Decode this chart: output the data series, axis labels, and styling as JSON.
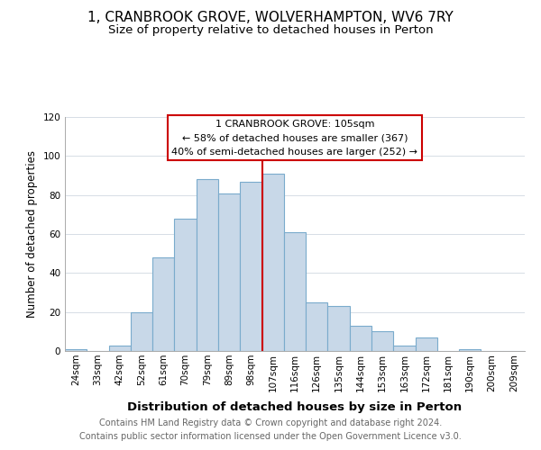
{
  "title": "1, CRANBROOK GROVE, WOLVERHAMPTON, WV6 7RY",
  "subtitle": "Size of property relative to detached houses in Perton",
  "xlabel": "Distribution of detached houses by size in Perton",
  "ylabel": "Number of detached properties",
  "bar_labels": [
    "24sqm",
    "33sqm",
    "42sqm",
    "52sqm",
    "61sqm",
    "70sqm",
    "79sqm",
    "89sqm",
    "98sqm",
    "107sqm",
    "116sqm",
    "126sqm",
    "135sqm",
    "144sqm",
    "153sqm",
    "163sqm",
    "172sqm",
    "181sqm",
    "190sqm",
    "200sqm",
    "209sqm"
  ],
  "bar_values": [
    1,
    0,
    3,
    20,
    48,
    68,
    88,
    81,
    87,
    91,
    61,
    25,
    23,
    13,
    10,
    3,
    7,
    0,
    1,
    0,
    0
  ],
  "bar_color": "#c8d8e8",
  "bar_edge_color": "#7aabcc",
  "marker_index": 9,
  "marker_line_color": "#cc0000",
  "ylim": [
    0,
    120
  ],
  "yticks": [
    0,
    20,
    40,
    60,
    80,
    100,
    120
  ],
  "annotation_title": "1 CRANBROOK GROVE: 105sqm",
  "annotation_line1": "← 58% of detached houses are smaller (367)",
  "annotation_line2": "40% of semi-detached houses are larger (252) →",
  "annotation_box_color": "#ffffff",
  "annotation_box_edge": "#cc0000",
  "footer_line1": "Contains HM Land Registry data © Crown copyright and database right 2024.",
  "footer_line2": "Contains public sector information licensed under the Open Government Licence v3.0.",
  "title_fontsize": 11,
  "subtitle_fontsize": 9.5,
  "xlabel_fontsize": 9.5,
  "ylabel_fontsize": 8.5,
  "annot_fontsize": 8.0,
  "tick_fontsize": 7.5,
  "footer_fontsize": 7.0
}
